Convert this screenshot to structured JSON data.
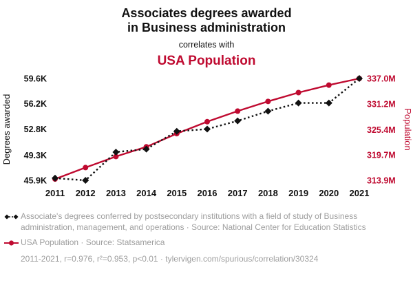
{
  "header": {
    "title_line1": "Associates degrees awarded",
    "title_line2": "in Business administration",
    "subtitle": "correlates with",
    "secondary_title": "USA Population"
  },
  "colors": {
    "accent_red": "#bf0a30",
    "series_black": "#111111",
    "legend_grey": "#9e9e9e"
  },
  "chart_data": {
    "type": "line",
    "title": "Associates degrees awarded in Business administration correlates with USA Population",
    "x": [
      2011,
      2012,
      2013,
      2014,
      2015,
      2016,
      2017,
      2018,
      2019,
      2020,
      2021
    ],
    "x_tick_labels": [
      "2011",
      "2012",
      "2013",
      "2014",
      "2015",
      "2016",
      "2017",
      "2018",
      "2019",
      "2020",
      "2021"
    ],
    "series": [
      {
        "name": "associates-degrees-business-administration",
        "axis": "left",
        "color": "#111111",
        "marker": "diamond",
        "line_style": "dotted",
        "unit": "K degrees",
        "values": [
          46.2,
          45.9,
          49.7,
          50.1,
          52.5,
          52.8,
          53.9,
          55.2,
          56.3,
          56.3,
          59.6
        ]
      },
      {
        "name": "usa-population",
        "axis": "right",
        "color": "#bf0a30",
        "marker": "circle",
        "line_style": "solid",
        "unit": "M people",
        "values": [
          314.2,
          316.8,
          319.3,
          321.5,
          324.5,
          327.2,
          329.6,
          331.8,
          333.8,
          335.5,
          337.0
        ]
      }
    ],
    "left_axis": {
      "label": "Degrees awarded",
      "tick_labels": [
        "59.6K",
        "56.2K",
        "52.8K",
        "49.3K",
        "45.9K"
      ],
      "tick_values": [
        59.6,
        56.2,
        52.8,
        49.3,
        45.9
      ],
      "min": 45.9,
      "max": 59.6
    },
    "right_axis": {
      "label": "Population",
      "tick_labels": [
        "337.0M",
        "331.2M",
        "325.4M",
        "319.7M",
        "313.9M"
      ],
      "tick_values": [
        337.0,
        331.2,
        325.4,
        319.7,
        313.9
      ],
      "min": 313.9,
      "max": 337.0
    },
    "grid": false,
    "legend_position": "bottom"
  },
  "legend": [
    {
      "series": "associates-degrees-business-administration",
      "text": "Associate's degrees conferred by postsecondary institutions with a field of study of Business administration, management, and operations · Source: National Center for Education Statistics"
    },
    {
      "series": "usa-population",
      "text": "USA Population · Source: Statsamerica"
    }
  ],
  "footer": {
    "stats": "2011-2021, r=0.976, r²=0.953, p<0.01 · tylervigen.com/spurious/correlation/30324"
  }
}
